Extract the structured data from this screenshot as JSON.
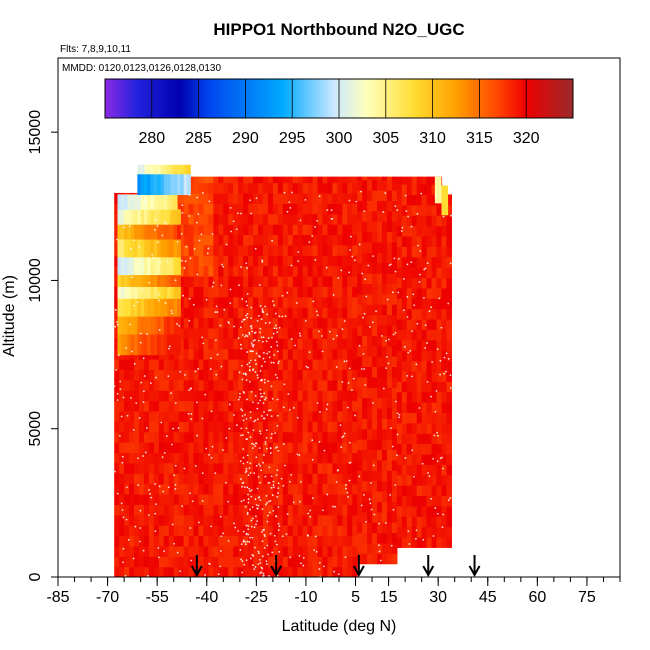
{
  "chart_data": {
    "type": "heatmap",
    "title": "HIPPO1 Northbound N2O_UGC",
    "subtitle_flights": "Flts: 7,8,9,10,11",
    "subtitle_dates": "MMDD: 0120,0123,0126,0128,0130",
    "xlabel": "Latitude (deg N)",
    "ylabel": "Altitude (m)",
    "xlim": [
      -85,
      85
    ],
    "ylim": [
      0,
      17500
    ],
    "xticks": [
      -85,
      -70,
      -55,
      -40,
      -25,
      -10,
      5,
      15,
      30,
      45,
      60,
      75
    ],
    "xtick_labels": [
      "-85",
      "-70",
      "-55",
      "-40",
      "-25",
      "-10",
      "5",
      "15",
      "30",
      "45",
      "60",
      "75"
    ],
    "yticks": [
      0,
      5000,
      10000,
      15000
    ],
    "ytick_labels": [
      "0",
      "5000",
      "10000",
      "15000"
    ],
    "colorbar": {
      "min": 275,
      "max": 325,
      "ticks": [
        280,
        285,
        290,
        295,
        300,
        305,
        310,
        315,
        320
      ],
      "tick_labels": [
        "280",
        "285",
        "290",
        "295",
        "300",
        "305",
        "310",
        "315",
        "320"
      ],
      "placement": "top-inside"
    },
    "data_extent": {
      "lat_range": [
        -68,
        34
      ],
      "alt_range": [
        0,
        13500
      ]
    },
    "background_value": 319,
    "high_lat_south_profile": [
      {
        "alt": 7500,
        "value": 313
      },
      {
        "alt": 8200,
        "value": 311
      },
      {
        "alt": 8800,
        "value": 307
      },
      {
        "alt": 9400,
        "value": 302
      },
      {
        "alt": 9800,
        "value": 309
      },
      {
        "alt": 10200,
        "value": 300
      },
      {
        "alt": 10800,
        "value": 306
      },
      {
        "alt": 11400,
        "value": 310
      },
      {
        "alt": 11900,
        "value": 302
      },
      {
        "alt": 12400,
        "value": 299
      },
      {
        "alt": 12900,
        "value": 292
      },
      {
        "alt": 13600,
        "value": 301
      }
    ],
    "profile_markers_lat": [
      -43,
      -19,
      6,
      27,
      41
    ]
  },
  "colors": {
    "colorbar": [
      "#7a1fff",
      "#0000cc",
      "#0066ff",
      "#00aaff",
      "#aaddff",
      "#ffffcc",
      "#ffee55",
      "#ffaa00",
      "#ff5500",
      "#ee0000",
      "#bb1111",
      "#a02020"
    ]
  }
}
